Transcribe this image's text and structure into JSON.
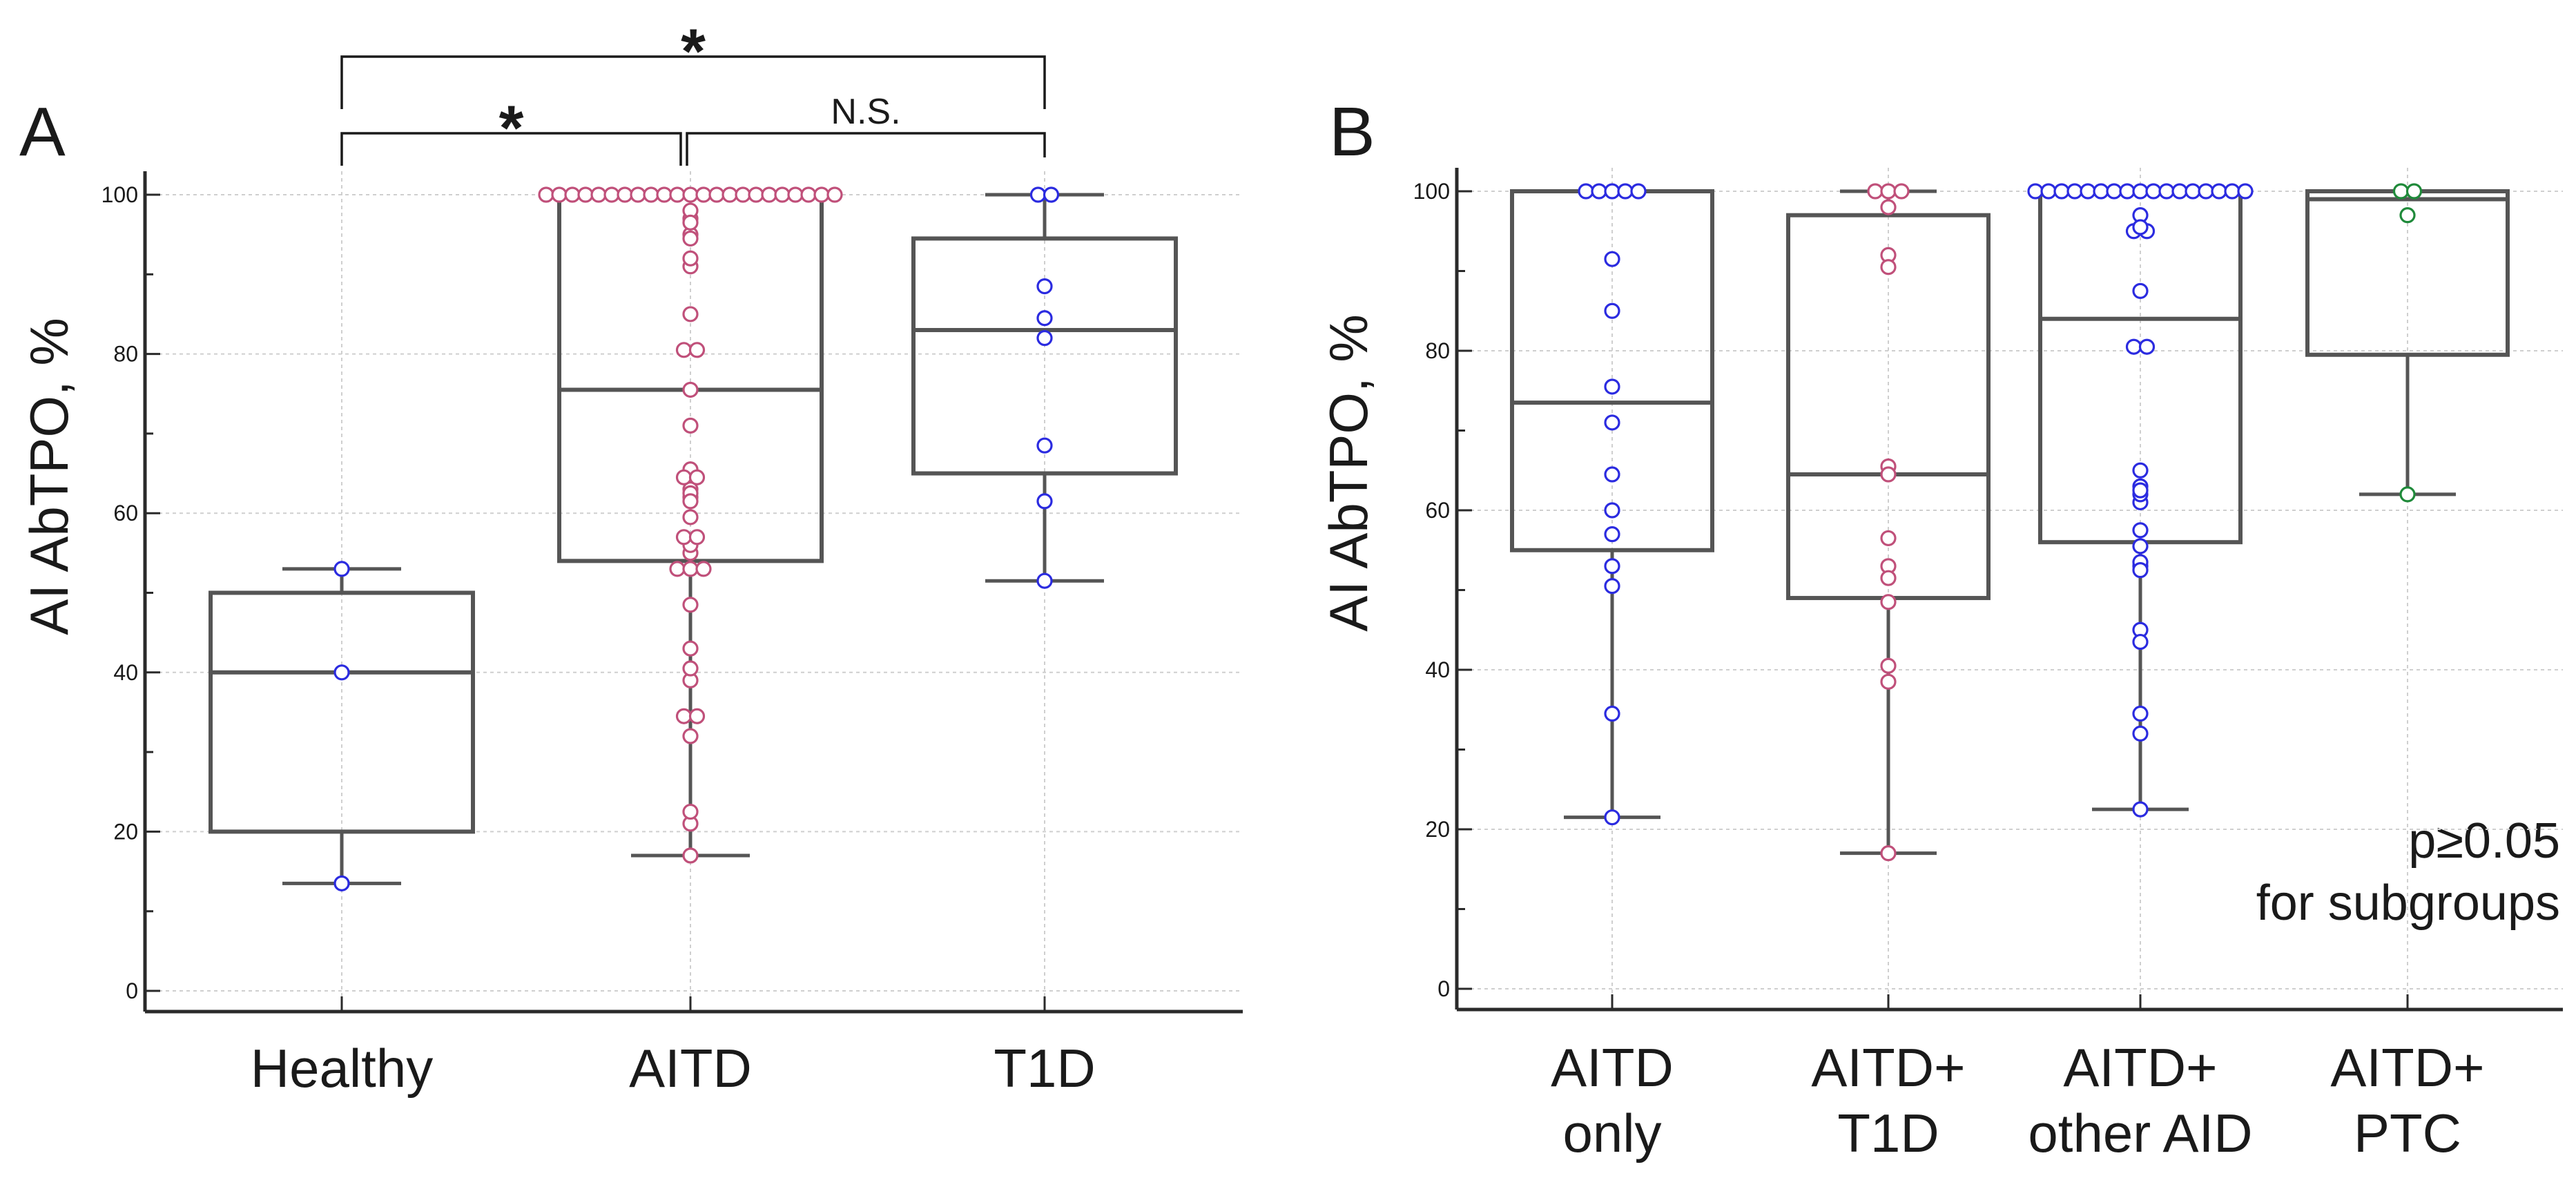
{
  "colors": {
    "pink": "#c0507a",
    "blue": "#2b2be0",
    "green": "#1f8a3a",
    "box": "#555555"
  },
  "chart_data": [
    {
      "type": "box",
      "panel": "A",
      "ylabel": "AI AbTPO, %",
      "ylim": [
        0,
        100
      ],
      "yticks": [
        "0",
        "20",
        "40",
        "60",
        "80",
        "100"
      ],
      "grid": true,
      "categories": [
        "Healthy",
        "AITD",
        "T1D"
      ],
      "boxes": [
        {
          "name": "Healthy",
          "color": "blue",
          "q1": 20,
          "median": 40,
          "q3": 50,
          "whisker_low": 13.5,
          "whisker_high": 53,
          "points": [
            53,
            40,
            13.5
          ]
        },
        {
          "name": "AITD",
          "color": "pink",
          "q1": 54,
          "median": 75.5,
          "q3": 100,
          "whisker_low": 17,
          "whisker_high": 100,
          "points": [
            100,
            100,
            100,
            100,
            100,
            100,
            100,
            100,
            100,
            100,
            100,
            100,
            100,
            100,
            100,
            100,
            100,
            100,
            100,
            100,
            100,
            100,
            100,
            98,
            97,
            96.5,
            95,
            94.5,
            92,
            91,
            85,
            80.5,
            80.5,
            75.5,
            71,
            65.5,
            64.5,
            64.5,
            63,
            62.5,
            62,
            61.5,
            59.5,
            57,
            57,
            56,
            55,
            53,
            53,
            53,
            48.5,
            43,
            40.5,
            39,
            34.5,
            34.5,
            32,
            22.5,
            21,
            17
          ]
        },
        {
          "name": "T1D",
          "color": "blue",
          "q1": 65,
          "median": 83,
          "q3": 94.5,
          "whisker_low": 51.5,
          "whisker_high": 100,
          "points": [
            100,
            100,
            88.5,
            84.5,
            82,
            68.5,
            61.5,
            51.5
          ]
        }
      ],
      "significance": [
        {
          "from": "Healthy",
          "to": "AITD",
          "label": "*"
        },
        {
          "from": "Healthy",
          "to": "T1D",
          "label": "*"
        },
        {
          "from": "AITD",
          "to": "T1D",
          "label": "N.S."
        }
      ]
    },
    {
      "type": "box",
      "panel": "B",
      "ylabel": "AI AbTPO, %",
      "ylim": [
        0,
        100
      ],
      "yticks": [
        "0",
        "20",
        "40",
        "60",
        "80",
        "100"
      ],
      "grid": true,
      "categories": [
        [
          "AITD",
          "only"
        ],
        [
          "AITD+",
          "T1D"
        ],
        [
          "AITD+",
          "other AID"
        ],
        [
          "AITD+",
          "PTC"
        ]
      ],
      "boxes": [
        {
          "name": "AITD only",
          "color": "blue",
          "q1": 55,
          "median": 73.5,
          "q3": 100,
          "whisker_low": 21.5,
          "whisker_high": 100,
          "points": [
            100,
            100,
            100,
            100,
            100,
            91.5,
            85,
            75.5,
            71,
            64.5,
            60,
            57,
            53,
            50.5,
            34.5,
            21.5
          ]
        },
        {
          "name": "AITD+ T1D",
          "color": "pink",
          "q1": 49,
          "median": 64.5,
          "q3": 97,
          "whisker_low": 17,
          "whisker_high": 100,
          "points": [
            100,
            100,
            100,
            98,
            92,
            90.5,
            65.5,
            64.5,
            56.5,
            53,
            51.5,
            48.5,
            40.5,
            38.5,
            17
          ]
        },
        {
          "name": "AITD+ other AID",
          "color": "blue",
          "q1": 56,
          "median": 84,
          "q3": 100,
          "whisker_low": 22.5,
          "whisker_high": 100,
          "points": [
            100,
            100,
            100,
            100,
            100,
            100,
            100,
            100,
            100,
            100,
            100,
            100,
            100,
            100,
            100,
            100,
            100,
            97,
            95.5,
            95,
            95,
            87.5,
            80.5,
            80.5,
            65,
            63,
            62.5,
            62,
            61,
            57.5,
            55.5,
            53.5,
            53,
            52.5,
            45,
            43.5,
            34.5,
            32,
            22.5
          ]
        },
        {
          "name": "AITD+ PTC",
          "color": "green",
          "q1": 79.5,
          "median": 99,
          "q3": 100,
          "whisker_low": 62,
          "whisker_high": 100,
          "points": [
            100,
            100,
            97,
            62
          ]
        }
      ],
      "annotation": [
        "p≥0.05",
        "for subgroups"
      ]
    }
  ]
}
